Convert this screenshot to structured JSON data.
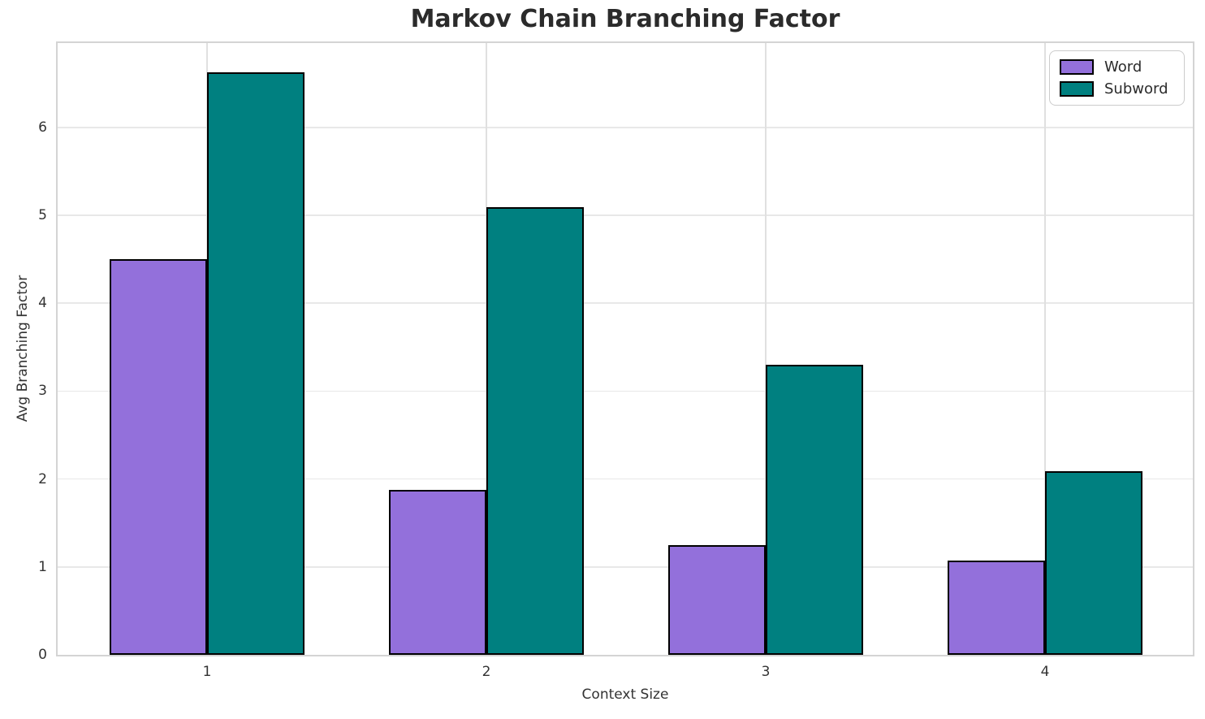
{
  "chart_data": {
    "type": "bar",
    "title": "Markov Chain Branching Factor",
    "xlabel": "Context Size",
    "ylabel": "Avg Branching Factor",
    "categories": [
      "1",
      "2",
      "3",
      "4"
    ],
    "series": [
      {
        "name": "Word",
        "color": "#9370DB",
        "values": [
          4.5,
          1.88,
          1.25,
          1.07
        ]
      },
      {
        "name": "Subword",
        "color": "#008080",
        "values": [
          6.63,
          5.09,
          3.3,
          2.09
        ]
      }
    ],
    "yticks": [
      0,
      1,
      2,
      3,
      4,
      5,
      6
    ],
    "ylim": [
      0,
      6.96
    ],
    "grid": true,
    "legend_position": "upper right",
    "bar_edge_color": "#000000",
    "grid_color": "#e8e8e8",
    "spine_color": "#d4d4d4",
    "text_color": "#2b2b2b"
  }
}
